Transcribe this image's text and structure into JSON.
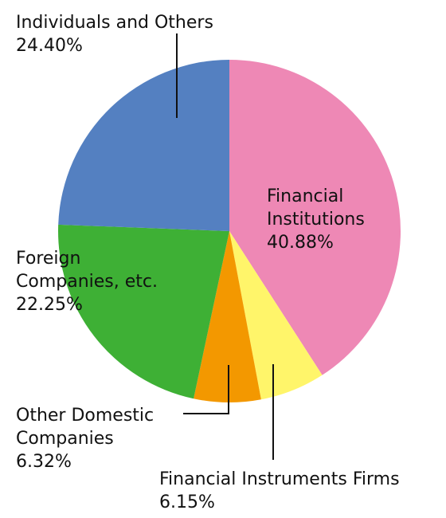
{
  "chart_data": {
    "type": "pie",
    "categories": [
      "Financial\nInstitutions",
      "Financial Instruments Firms",
      "Other Domestic\nCompanies",
      "Foreign\nCompanies, etc.",
      "Individuals and Others"
    ],
    "values": [
      40.88,
      6.15,
      6.32,
      22.25,
      24.4
    ],
    "value_labels": [
      "40.88%",
      "6.15%",
      "6.32%",
      "22.25%",
      "24.40%"
    ],
    "colors": [
      "#ee88b5",
      "#fff56a",
      "#f39800",
      "#3eb035",
      "#5480c1"
    ]
  }
}
